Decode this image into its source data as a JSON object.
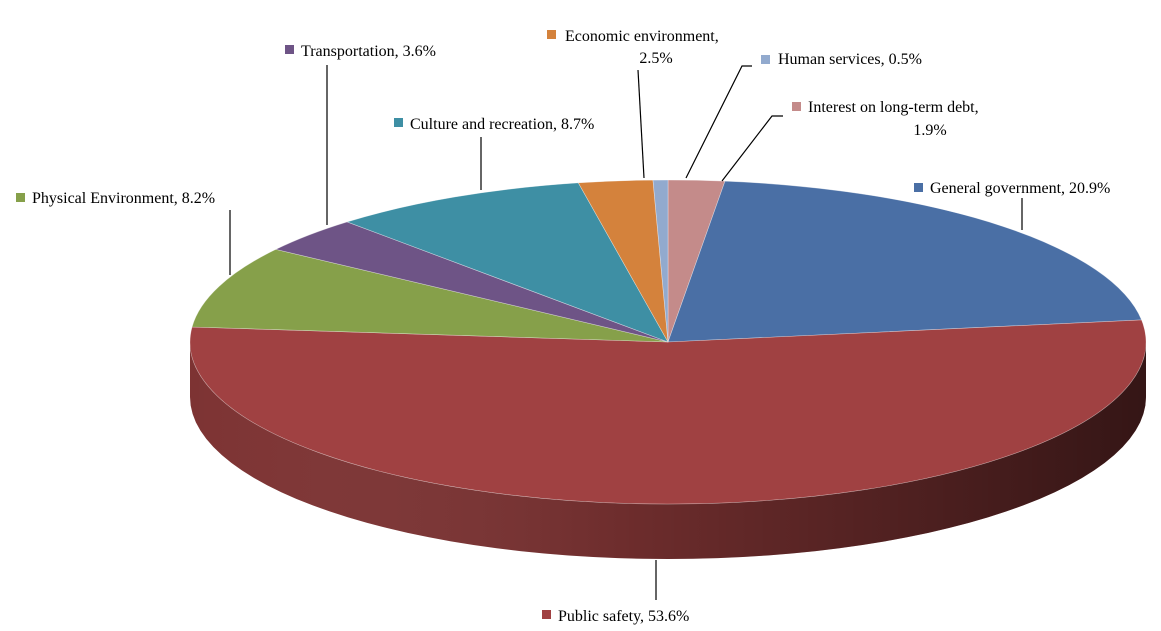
{
  "chart_data": {
    "type": "pie",
    "style": "3d",
    "start_angle_deg": 90,
    "direction": "clockwise",
    "slices": [
      {
        "name": "Interest on long-term debt",
        "value": 1.9,
        "color": "#C48B8A",
        "label_lines": [
          "Interest on long-term debt,",
          "1.9%"
        ]
      },
      {
        "name": "General government",
        "value": 20.9,
        "color": "#4A6FA5",
        "label_lines": [
          "General government, 20.9%"
        ]
      },
      {
        "name": "Public safety",
        "value": 53.6,
        "color": "#A04142",
        "label_lines": [
          "Public safety, 53.6%"
        ]
      },
      {
        "name": "Physical Environment",
        "value": 8.2,
        "color": "#86A04A",
        "label_lines": [
          "Physical Environment,  8.2%"
        ]
      },
      {
        "name": "Transportation",
        "value": 3.6,
        "color": "#6E5486",
        "label_lines": [
          "Transportation, 3.6%"
        ]
      },
      {
        "name": "Culture and recreation",
        "value": 8.7,
        "color": "#3E8FA4",
        "label_lines": [
          "Culture and recreation, 8.7%"
        ]
      },
      {
        "name": "Economic environment",
        "value": 2.5,
        "color": "#D4823C",
        "label_lines": [
          "Economic environment,",
          "2.5%"
        ]
      },
      {
        "name": "Human services",
        "value": 0.5,
        "color": "#92AACE",
        "label_lines": [
          "Human services, 0.5%"
        ]
      }
    ]
  }
}
